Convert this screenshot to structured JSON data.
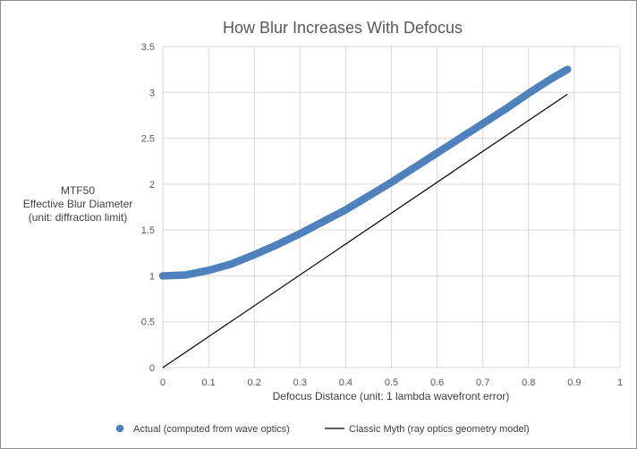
{
  "chart_data": {
    "type": "scatter",
    "title": "How Blur Increases With Defocus",
    "xlabel": "Defocus Distance (unit: 1 lambda wavefront error)",
    "ylabel_lines": [
      "MTF50",
      "Effective Blur Diameter",
      "(unit: diffraction limit)"
    ],
    "xlim": [
      0,
      1
    ],
    "ylim": [
      0,
      3.5
    ],
    "x_ticks": [
      "0",
      "0.1",
      "0.2",
      "0.3",
      "0.4",
      "0.5",
      "0.6",
      "0.7",
      "0.8",
      "0.9",
      "1"
    ],
    "y_ticks": [
      "0",
      "0.5",
      "1",
      "1.5",
      "2",
      "2.5",
      "3",
      "3.5"
    ],
    "grid": "vertical and horizontal",
    "legend_position": "bottom",
    "series": [
      {
        "name": "Actual (computed from wave optics)",
        "style": "markers",
        "color": "#4f81bd",
        "x": [
          0,
          0.05,
          0.1,
          0.15,
          0.2,
          0.25,
          0.3,
          0.35,
          0.4,
          0.45,
          0.5,
          0.55,
          0.6,
          0.65,
          0.7,
          0.75,
          0.8,
          0.85,
          0.885
        ],
        "y": [
          1.0,
          1.01,
          1.06,
          1.13,
          1.23,
          1.34,
          1.46,
          1.59,
          1.72,
          1.87,
          2.02,
          2.18,
          2.34,
          2.5,
          2.66,
          2.82,
          2.99,
          3.15,
          3.25
        ]
      },
      {
        "name": "Classic Myth  (ray optics geometry model)",
        "style": "line",
        "color": "#000000",
        "x": [
          0,
          0.885
        ],
        "y": [
          0,
          2.98
        ]
      }
    ]
  }
}
